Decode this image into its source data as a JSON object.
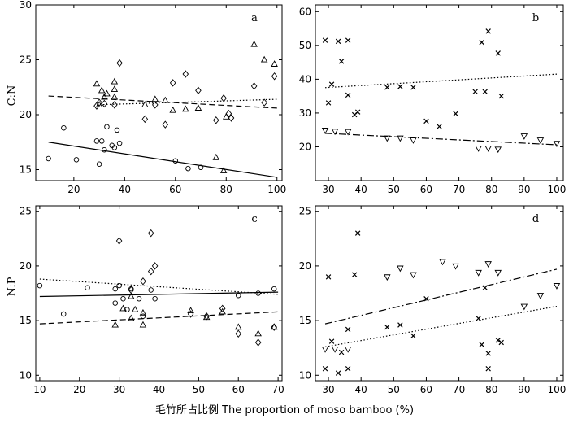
{
  "figure": {
    "xlabel": "毛竹所占比例 The proportion of moso bamboo (%)",
    "ylabel_top": "C:N",
    "ylabel_bottom": "N:P"
  },
  "chart_data": [
    {
      "panel": "a",
      "type": "scatter",
      "xlim": [
        5,
        102
      ],
      "ylim": [
        14,
        30
      ],
      "xticks": [
        20,
        40,
        60,
        80,
        100
      ],
      "yticks": [
        15,
        20,
        25,
        30
      ],
      "ylabel": "C:N",
      "series": [
        {
          "marker": "circle",
          "points": [
            [
              10,
              16.0
            ],
            [
              16,
              18.8
            ],
            [
              21,
              15.9
            ],
            [
              29,
              17.6
            ],
            [
              30,
              15.5
            ],
            [
              31,
              17.6
            ],
            [
              32,
              16.8
            ],
            [
              33,
              18.9
            ],
            [
              35,
              17.2
            ],
            [
              36,
              17.0
            ],
            [
              37,
              18.6
            ],
            [
              38,
              17.4
            ],
            [
              60,
              15.8
            ],
            [
              65,
              15.1
            ],
            [
              70,
              15.2
            ]
          ],
          "fit": {
            "style": "solid",
            "x": [
              10,
              100
            ],
            "y": [
              17.5,
              14.3
            ]
          }
        },
        {
          "marker": "triangle-up",
          "points": [
            [
              29,
              22.8
            ],
            [
              30,
              20.9
            ],
            [
              31,
              22.2
            ],
            [
              32,
              21.6
            ],
            [
              33,
              21.9
            ],
            [
              36,
              22.3
            ],
            [
              36,
              21.6
            ],
            [
              36,
              23.0
            ],
            [
              48,
              20.9
            ],
            [
              52,
              21.4
            ],
            [
              56,
              21.3
            ],
            [
              59,
              20.4
            ],
            [
              64,
              20.5
            ],
            [
              69,
              20.6
            ],
            [
              76,
              16.1
            ],
            [
              79,
              14.9
            ],
            [
              80,
              19.8
            ],
            [
              91,
              26.4
            ],
            [
              95,
              25.0
            ],
            [
              99,
              24.6
            ]
          ],
          "fit": {
            "style": "dashed",
            "x": [
              10,
              100
            ],
            "y": [
              21.7,
              20.6
            ]
          }
        },
        {
          "marker": "diamond",
          "points": [
            [
              29,
              20.8
            ],
            [
              30,
              21.1
            ],
            [
              32,
              21.0
            ],
            [
              36,
              20.9
            ],
            [
              38,
              24.7
            ],
            [
              48,
              19.6
            ],
            [
              52,
              20.9
            ],
            [
              56,
              19.1
            ],
            [
              59,
              22.9
            ],
            [
              64,
              23.7
            ],
            [
              69,
              22.2
            ],
            [
              76,
              19.5
            ],
            [
              79,
              21.5
            ],
            [
              81,
              20.1
            ],
            [
              82,
              19.7
            ],
            [
              91,
              22.6
            ],
            [
              95,
              21.1
            ],
            [
              99,
              23.5
            ]
          ],
          "fit": {
            "style": "dotted",
            "x": [
              29,
              100
            ],
            "y": [
              20.9,
              21.4
            ]
          }
        }
      ]
    },
    {
      "panel": "b",
      "type": "scatter",
      "xlim": [
        26,
        102
      ],
      "ylim": [
        10,
        62
      ],
      "xticks": [
        30,
        40,
        50,
        60,
        70,
        80,
        90,
        100
      ],
      "yticks": [
        20,
        30,
        40,
        50,
        60
      ],
      "series": [
        {
          "marker": "x",
          "points": [
            [
              29,
              51.5
            ],
            [
              30,
              33.0
            ],
            [
              31,
              38.5
            ],
            [
              33,
              51.2
            ],
            [
              34,
              45.3
            ],
            [
              36,
              51.5
            ],
            [
              36,
              35.3
            ],
            [
              38,
              29.5
            ],
            [
              39,
              30.3
            ],
            [
              48,
              37.6
            ],
            [
              52,
              37.8
            ],
            [
              56,
              37.6
            ],
            [
              60,
              27.6
            ],
            [
              64,
              26.0
            ],
            [
              69,
              29.8
            ],
            [
              75,
              36.3
            ],
            [
              77,
              50.9
            ],
            [
              78,
              36.3
            ],
            [
              79,
              54.2
            ],
            [
              82,
              47.7
            ],
            [
              83,
              35.0
            ]
          ],
          "fit": {
            "style": "dotted",
            "x": [
              29,
              100
            ],
            "y": [
              37.5,
              41.5
            ]
          }
        },
        {
          "marker": "triangle-down",
          "points": [
            [
              29,
              24.9
            ],
            [
              32,
              24.6
            ],
            [
              36,
              24.5
            ],
            [
              48,
              22.6
            ],
            [
              52,
              22.6
            ],
            [
              56,
              22.0
            ],
            [
              76,
              19.6
            ],
            [
              79,
              19.6
            ],
            [
              82,
              19.3
            ],
            [
              90,
              23.2
            ],
            [
              95,
              22.0
            ],
            [
              100,
              21.0
            ]
          ],
          "fit": {
            "style": "dashdot",
            "x": [
              29,
              100
            ],
            "y": [
              24.0,
              20.6
            ]
          }
        }
      ]
    },
    {
      "panel": "c",
      "type": "scatter",
      "xlim": [
        9,
        71
      ],
      "ylim": [
        9.5,
        25.5
      ],
      "xticks": [
        10,
        20,
        30,
        40,
        50,
        60,
        70
      ],
      "yticks": [
        10,
        15,
        20,
        25
      ],
      "ylabel": "N:P",
      "series": [
        {
          "marker": "circle",
          "points": [
            [
              10,
              18.2
            ],
            [
              16,
              15.6
            ],
            [
              22,
              18.0
            ],
            [
              29,
              17.9
            ],
            [
              29,
              16.6
            ],
            [
              30,
              18.2
            ],
            [
              31,
              17.0
            ],
            [
              32,
              16.0
            ],
            [
              33,
              17.9
            ],
            [
              35,
              17.0
            ],
            [
              36,
              15.4
            ],
            [
              38,
              17.8
            ],
            [
              39,
              17.0
            ],
            [
              60,
              17.3
            ],
            [
              65,
              17.5
            ],
            [
              69,
              17.9
            ]
          ],
          "fit": {
            "style": "solid",
            "x": [
              10,
              70
            ],
            "y": [
              17.2,
              17.6
            ]
          }
        },
        {
          "marker": "triangle-up",
          "points": [
            [
              29,
              14.6
            ],
            [
              31,
              16.1
            ],
            [
              33,
              15.2
            ],
            [
              33,
              17.2
            ],
            [
              34,
              16.0
            ],
            [
              36,
              14.6
            ],
            [
              36,
              15.7
            ],
            [
              48,
              15.9
            ],
            [
              52,
              15.3
            ],
            [
              56,
              15.8
            ],
            [
              60,
              14.4
            ],
            [
              65,
              13.8
            ],
            [
              69,
              14.4
            ]
          ],
          "fit": {
            "style": "dashed",
            "x": [
              10,
              70
            ],
            "y": [
              14.7,
              15.8
            ]
          }
        },
        {
          "marker": "diamond",
          "points": [
            [
              30,
              22.3
            ],
            [
              33,
              17.8
            ],
            [
              36,
              18.6
            ],
            [
              38,
              19.5
            ],
            [
              38,
              23.0
            ],
            [
              39,
              20.0
            ],
            [
              48,
              15.6
            ],
            [
              52,
              15.4
            ],
            [
              56,
              16.1
            ],
            [
              60,
              13.8
            ],
            [
              65,
              13.0
            ],
            [
              69,
              14.4
            ]
          ],
          "fit": {
            "style": "dotted",
            "x": [
              10,
              70
            ],
            "y": [
              18.8,
              17.4
            ]
          }
        }
      ]
    },
    {
      "panel": "d",
      "type": "scatter",
      "xlim": [
        26,
        102
      ],
      "ylim": [
        9.5,
        25.5
      ],
      "xticks": [
        30,
        40,
        50,
        60,
        70,
        80,
        90,
        100
      ],
      "yticks": [
        10,
        15,
        20,
        25
      ],
      "series": [
        {
          "marker": "x",
          "points": [
            [
              29,
              10.6
            ],
            [
              30,
              19.0
            ],
            [
              31,
              13.1
            ],
            [
              33,
              10.2
            ],
            [
              34,
              12.1
            ],
            [
              36,
              10.6
            ],
            [
              36,
              14.2
            ],
            [
              38,
              19.2
            ],
            [
              39,
              23.0
            ],
            [
              48,
              14.4
            ],
            [
              52,
              14.6
            ],
            [
              56,
              13.6
            ],
            [
              60,
              17.0
            ],
            [
              76,
              15.2
            ],
            [
              77,
              12.8
            ],
            [
              78,
              18.0
            ],
            [
              79,
              12.0
            ],
            [
              79,
              10.6
            ],
            [
              82,
              13.2
            ],
            [
              83,
              13.0
            ]
          ],
          "fit": {
            "style": "dotted",
            "x": [
              29,
              100
            ],
            "y": [
              12.6,
              16.3
            ]
          }
        },
        {
          "marker": "triangle-down",
          "points": [
            [
              29,
              12.4
            ],
            [
              32,
              12.4
            ],
            [
              36,
              12.4
            ],
            [
              48,
              19.0
            ],
            [
              52,
              19.8
            ],
            [
              56,
              19.2
            ],
            [
              65,
              20.4
            ],
            [
              69,
              20.0
            ],
            [
              76,
              19.4
            ],
            [
              79,
              20.2
            ],
            [
              82,
              19.4
            ],
            [
              90,
              16.3
            ],
            [
              95,
              17.3
            ],
            [
              100,
              18.2
            ]
          ],
          "fit": {
            "style": "dashdot",
            "x": [
              29,
              100
            ],
            "y": [
              14.7,
              19.7
            ]
          }
        }
      ]
    }
  ]
}
